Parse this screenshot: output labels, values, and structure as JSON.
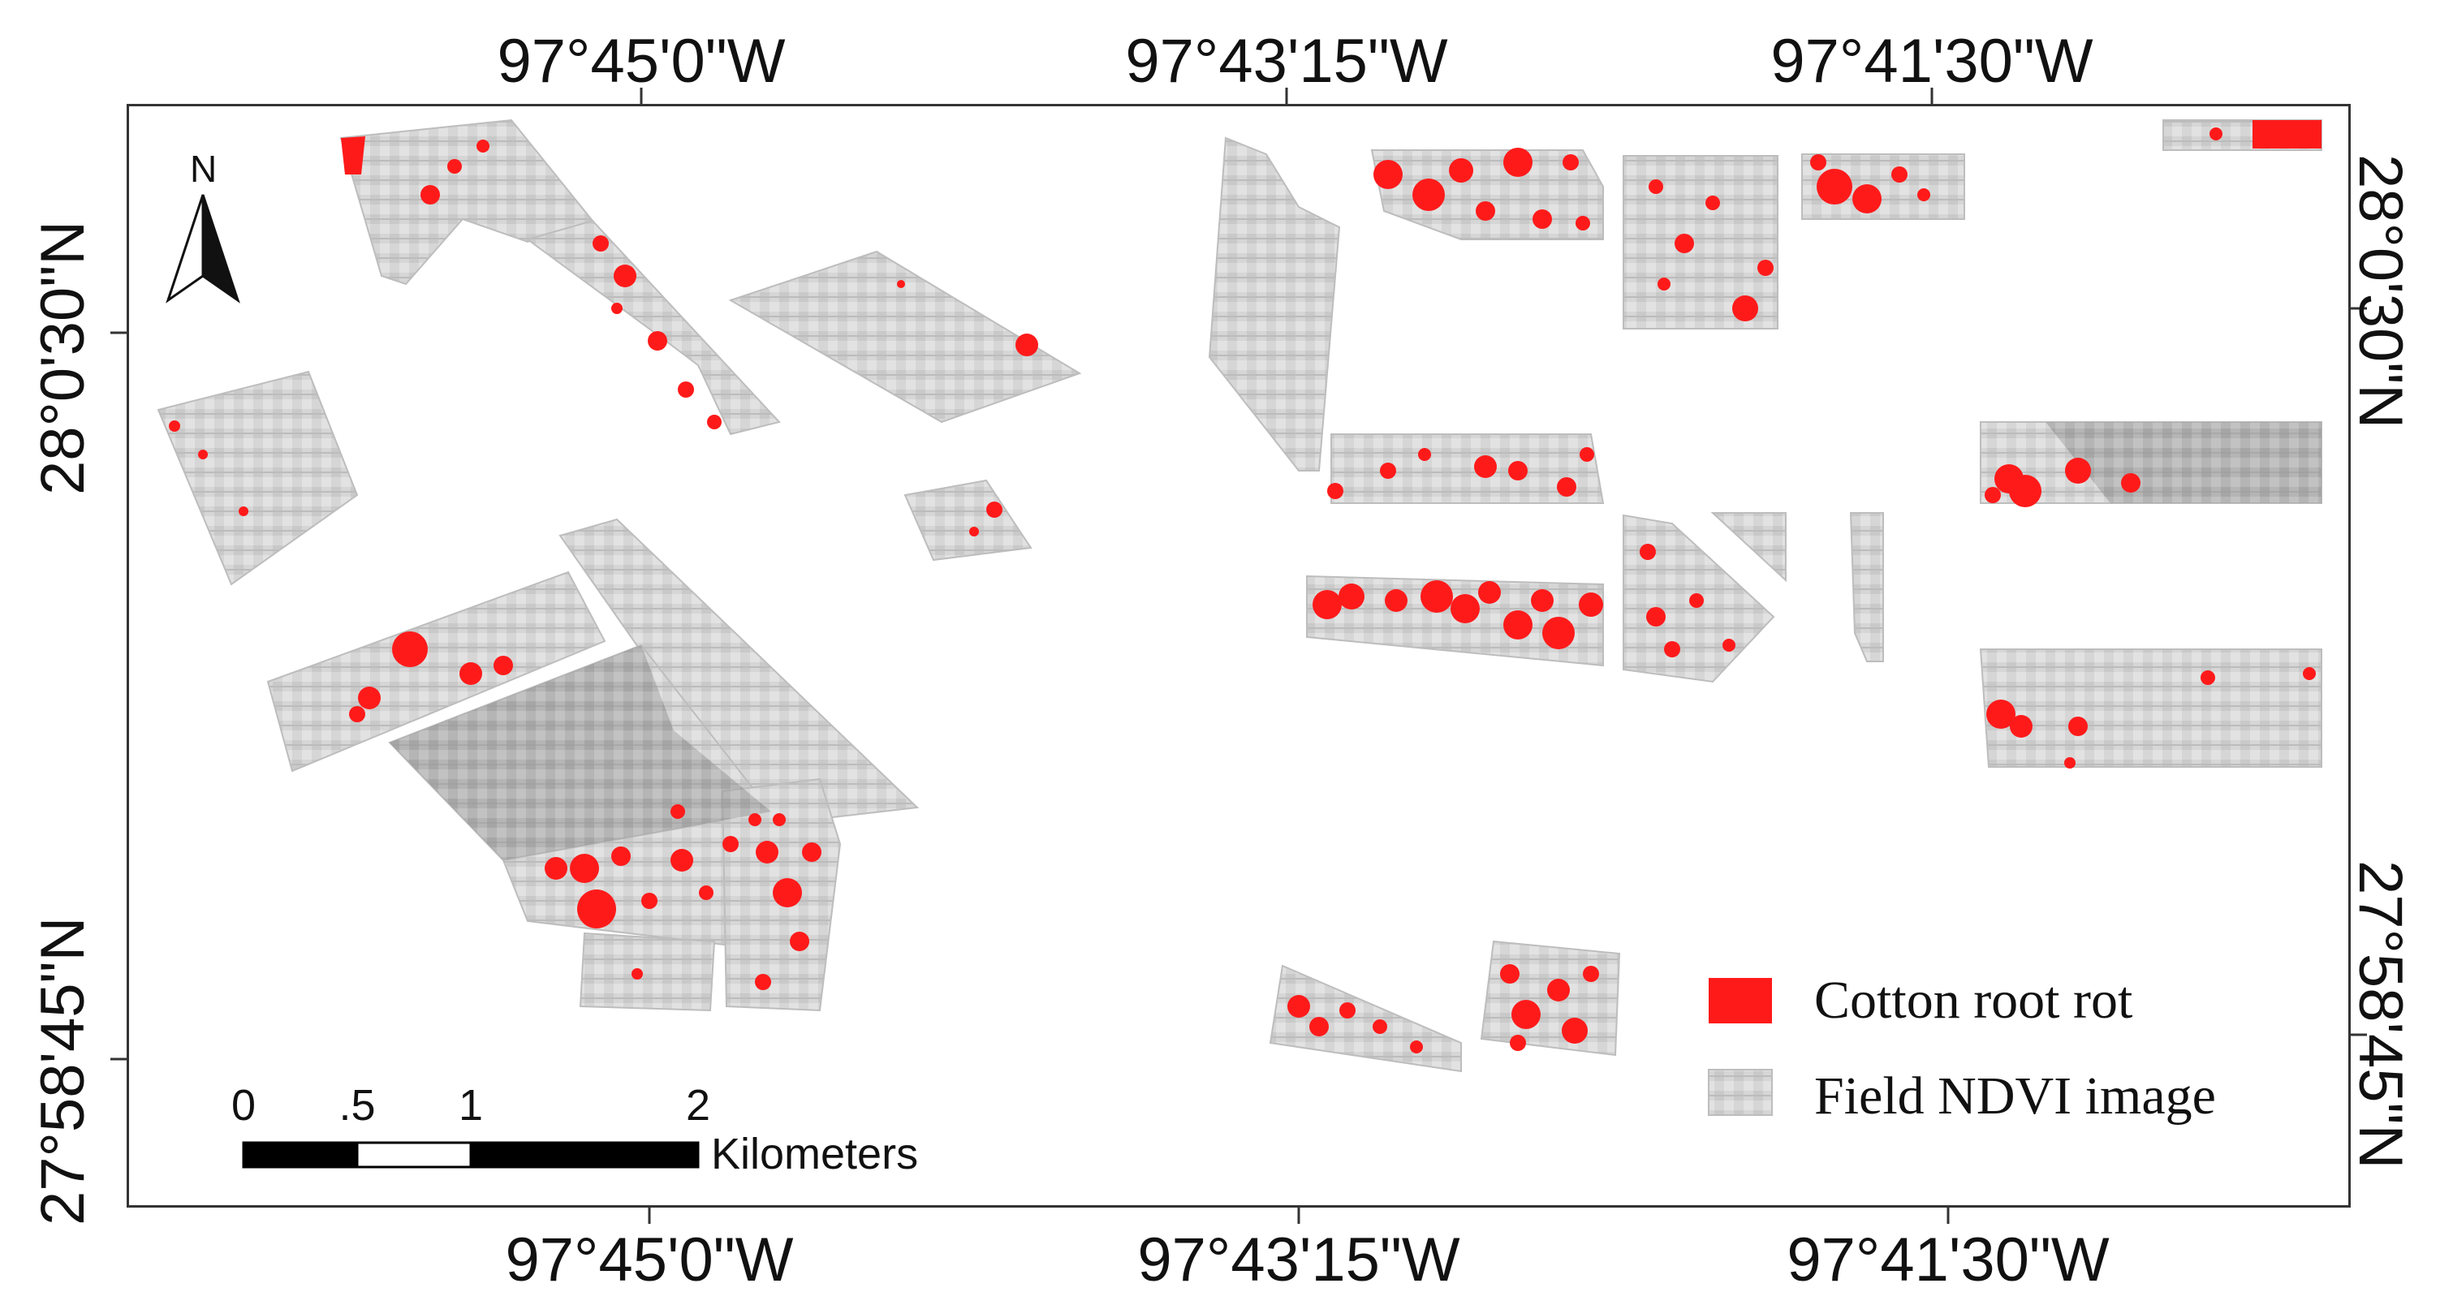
{
  "map": {
    "top_longitudes": [
      "97°45'0\"W",
      "97°43'15\"W",
      "97°41'30\"W"
    ],
    "bottom_longitudes": [
      "97°45'0\"W",
      "97°43'15\"W",
      "97°41'30\"W"
    ],
    "left_latitudes": [
      "28°0'30\"N",
      "27°58'45\"N"
    ],
    "right_latitudes": [
      "28°0'30\"N",
      "27°58'45\"N"
    ],
    "north_arrow_label": "N"
  },
  "scale_bar": {
    "ticks": [
      "0",
      ".5",
      "1",
      "2"
    ],
    "unit": "Kilometers"
  },
  "legend": {
    "items": [
      {
        "label": "Cotton root rot",
        "color": "#ff1a1a"
      },
      {
        "label": "Field NDVI image",
        "color": "#bdbdbd"
      }
    ]
  }
}
